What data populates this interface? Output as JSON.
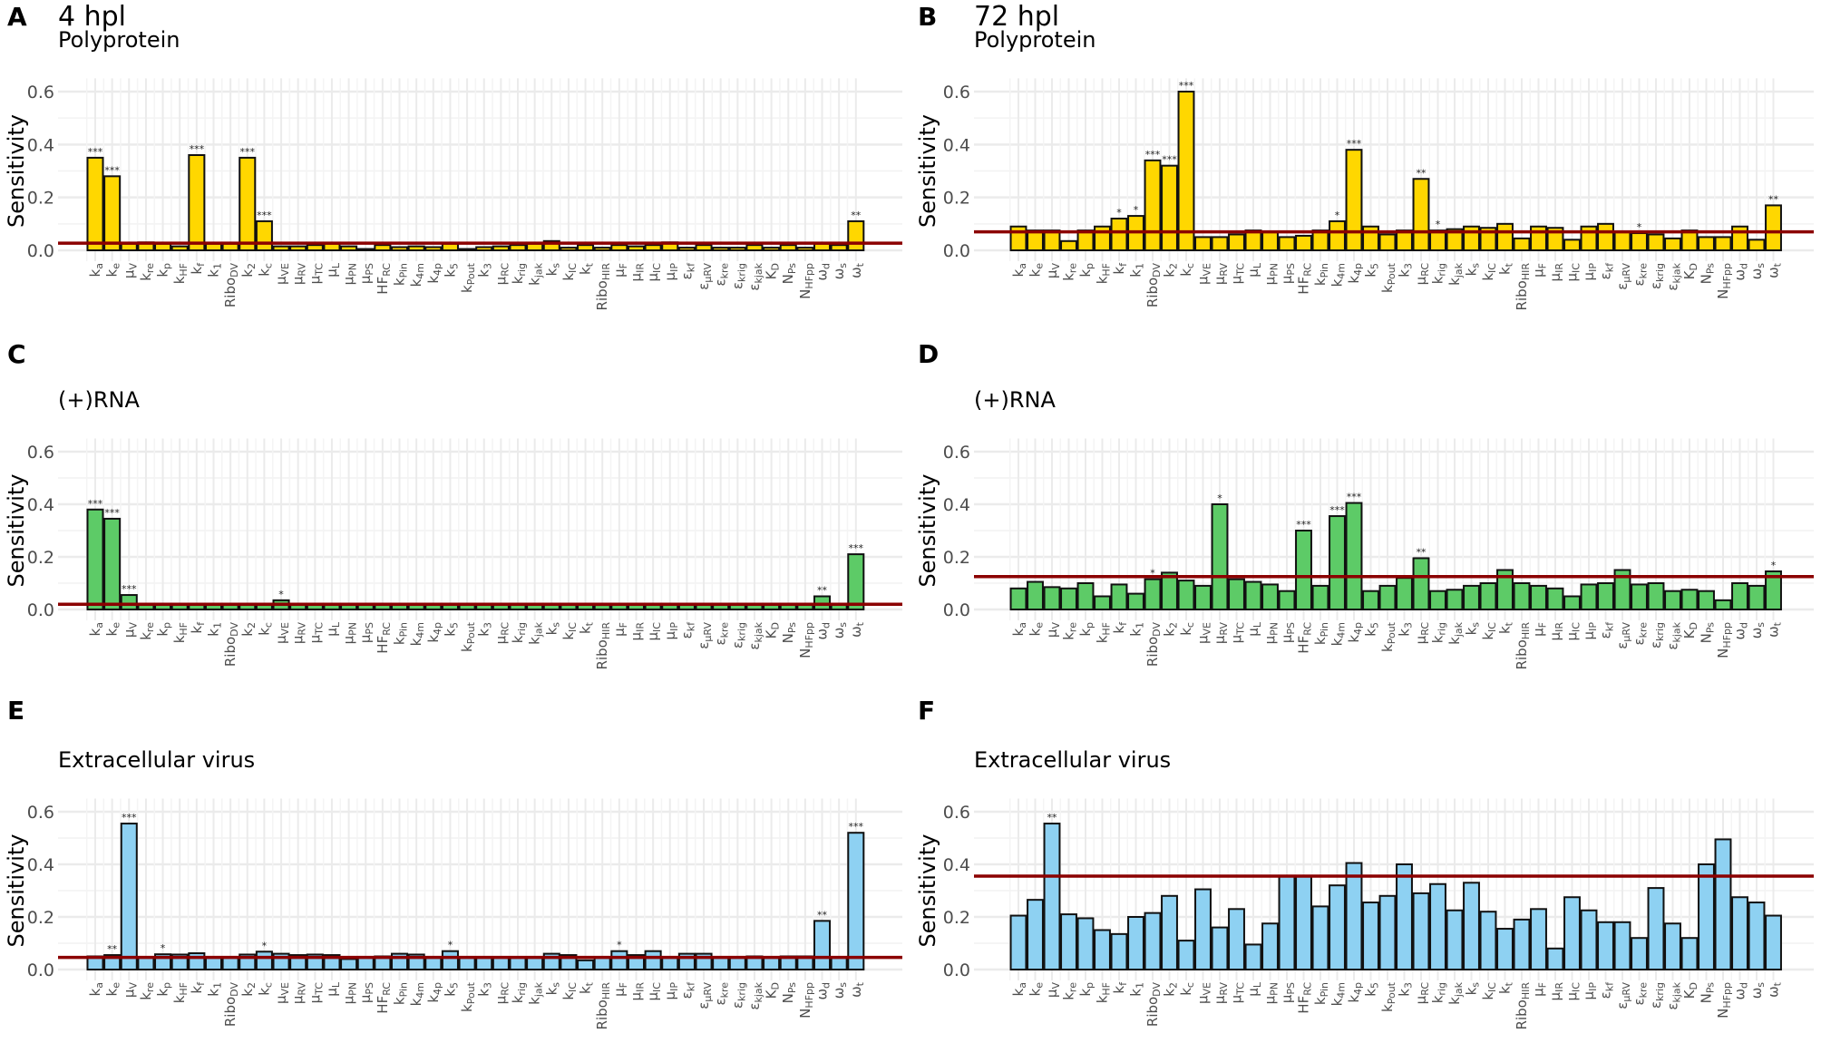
{
  "chart_data": {
    "type": "bar",
    "ylabel": "Sensitivity",
    "ylim": [
      0,
      0.65
    ],
    "yticks": [
      "0.0",
      "0.2",
      "0.4",
      "0.6"
    ],
    "grid": true,
    "categories": [
      {
        "base": "k",
        "sub": "a"
      },
      {
        "base": "k",
        "sub": "e"
      },
      {
        "base": "μ",
        "sub": "V"
      },
      {
        "base": "k",
        "sub": "re"
      },
      {
        "base": "k",
        "sub": "p"
      },
      {
        "base": "k",
        "sub": "HF"
      },
      {
        "base": "k",
        "sub": "f"
      },
      {
        "base": "k",
        "sub": "1"
      },
      {
        "base": "Ribo",
        "sub": "DV"
      },
      {
        "base": "k",
        "sub": "2"
      },
      {
        "base": "k",
        "sub": "c"
      },
      {
        "base": "μ",
        "sub": "VE"
      },
      {
        "base": "μ",
        "sub": "RV"
      },
      {
        "base": "μ",
        "sub": "TC"
      },
      {
        "base": "μ",
        "sub": "L"
      },
      {
        "base": "μ",
        "sub": "PN"
      },
      {
        "base": "μ",
        "sub": "PS"
      },
      {
        "base": "HF",
        "sub": "RC"
      },
      {
        "base": "k",
        "sub": "Pin"
      },
      {
        "base": "k",
        "sub": "4m"
      },
      {
        "base": "k",
        "sub": "4p"
      },
      {
        "base": "k",
        "sub": "5"
      },
      {
        "base": "k",
        "sub": "Pout"
      },
      {
        "base": "k",
        "sub": "3"
      },
      {
        "base": "μ",
        "sub": "RC"
      },
      {
        "base": "k",
        "sub": "rig"
      },
      {
        "base": "k",
        "sub": "jak"
      },
      {
        "base": "k",
        "sub": "s"
      },
      {
        "base": "k",
        "sub": "IC"
      },
      {
        "base": "k",
        "sub": "t"
      },
      {
        "base": "Ribo",
        "sub": "HIR"
      },
      {
        "base": "μ",
        "sub": "F"
      },
      {
        "base": "μ",
        "sub": "IR"
      },
      {
        "base": "μ",
        "sub": "IC"
      },
      {
        "base": "μ",
        "sub": "IP"
      },
      {
        "base": "ε",
        "sub": "kf"
      },
      {
        "base": "ε",
        "sub": "μRV"
      },
      {
        "base": "ε",
        "sub": "kre"
      },
      {
        "base": "ε",
        "sub": "krig"
      },
      {
        "base": "ε",
        "sub": "kjak"
      },
      {
        "base": "K",
        "sub": "D"
      },
      {
        "base": "N",
        "sub": "Ps"
      },
      {
        "base": "N",
        "sub": "HFpp"
      },
      {
        "base": "ω",
        "sub": "d"
      },
      {
        "base": "ω",
        "sub": "s"
      },
      {
        "base": "ω",
        "sub": "t"
      }
    ],
    "panels": [
      {
        "letter": "A",
        "timepoint": "4 hpl",
        "measure": "Polyprotein",
        "color": "#FFD700",
        "threshold": 0.027,
        "values": [
          0.35,
          0.28,
          0.025,
          0.03,
          0.025,
          0.015,
          0.36,
          0.025,
          0.025,
          0.35,
          0.11,
          0.015,
          0.015,
          0.02,
          0.025,
          0.015,
          0.005,
          0.02,
          0.012,
          0.015,
          0.012,
          0.025,
          0.005,
          0.012,
          0.015,
          0.02,
          0.025,
          0.035,
          0.01,
          0.02,
          0.01,
          0.02,
          0.015,
          0.02,
          0.03,
          0.01,
          0.02,
          0.01,
          0.01,
          0.02,
          0.01,
          0.02,
          0.01,
          0.025,
          0.02,
          0.11
        ],
        "significance": [
          "***",
          "***",
          "",
          "",
          "",
          "",
          "***",
          "",
          "",
          "***",
          "***",
          "",
          "",
          "",
          "",
          "",
          "",
          "",
          "",
          "",
          "",
          "",
          "",
          "",
          "",
          "",
          "",
          "",
          "",
          "",
          "",
          "",
          "",
          "",
          "",
          "",
          "",
          "",
          "",
          "",
          "",
          "",
          "",
          "",
          "",
          "**"
        ]
      },
      {
        "letter": "B",
        "timepoint": "72 hpl",
        "measure": "Polyprotein",
        "color": "#FFD700",
        "threshold": 0.07,
        "values": [
          0.09,
          0.075,
          0.075,
          0.035,
          0.075,
          0.09,
          0.12,
          0.13,
          0.34,
          0.32,
          0.6,
          0.05,
          0.05,
          0.06,
          0.075,
          0.07,
          0.05,
          0.055,
          0.075,
          0.11,
          0.38,
          0.09,
          0.06,
          0.075,
          0.27,
          0.075,
          0.08,
          0.09,
          0.085,
          0.1,
          0.045,
          0.09,
          0.085,
          0.04,
          0.09,
          0.1,
          0.07,
          0.065,
          0.06,
          0.045,
          0.075,
          0.05,
          0.05,
          0.09,
          0.04,
          0.17
        ],
        "significance": [
          "",
          "",
          "",
          "",
          "",
          "",
          "*",
          "*",
          "***",
          "***",
          "***",
          "",
          "",
          "",
          "",
          "",
          "",
          "",
          "",
          "*",
          "***",
          "",
          "",
          "",
          "**",
          "*",
          "",
          "",
          "",
          "",
          "",
          "",
          "",
          "",
          "",
          "",
          "",
          "*",
          "",
          "",
          "",
          "",
          "",
          "",
          "",
          "**"
        ]
      },
      {
        "letter": "C",
        "timepoint": "",
        "measure": "(+)RNA",
        "color": "#5DCB67",
        "threshold": 0.02,
        "values": [
          0.38,
          0.345,
          0.055,
          0.02,
          0.02,
          0.02,
          0.02,
          0.02,
          0.02,
          0.02,
          0.02,
          0.035,
          0.02,
          0.02,
          0.02,
          0.02,
          0.02,
          0.02,
          0.02,
          0.02,
          0.02,
          0.02,
          0.018,
          0.022,
          0.02,
          0.02,
          0.02,
          0.022,
          0.02,
          0.02,
          0.017,
          0.02,
          0.02,
          0.02,
          0.02,
          0.02,
          0.02,
          0.022,
          0.02,
          0.02,
          0.02,
          0.02,
          0.02,
          0.05,
          0.02,
          0.21
        ],
        "significance": [
          "***",
          "***",
          "***",
          "",
          "",
          "",
          "",
          "",
          "",
          "",
          "",
          "*",
          "",
          "",
          "",
          "",
          "",
          "",
          "",
          "",
          "",
          "",
          "",
          "",
          "",
          "",
          "",
          "",
          "",
          "",
          "",
          "",
          "",
          "",
          "",
          "",
          "",
          "",
          "",
          "",
          "",
          "",
          "",
          "**",
          "",
          "***"
        ]
      },
      {
        "letter": "D",
        "timepoint": "",
        "measure": "(+)RNA",
        "color": "#5DCB67",
        "threshold": 0.125,
        "values": [
          0.08,
          0.105,
          0.085,
          0.08,
          0.1,
          0.05,
          0.095,
          0.06,
          0.115,
          0.14,
          0.11,
          0.09,
          0.4,
          0.115,
          0.105,
          0.095,
          0.07,
          0.3,
          0.09,
          0.355,
          0.405,
          0.07,
          0.09,
          0.12,
          0.195,
          0.07,
          0.075,
          0.09,
          0.1,
          0.15,
          0.1,
          0.09,
          0.08,
          0.05,
          0.095,
          0.1,
          0.15,
          0.095,
          0.1,
          0.07,
          0.075,
          0.07,
          0.035,
          0.1,
          0.09,
          0.145
        ],
        "significance": [
          "",
          "",
          "",
          "",
          "",
          "",
          "",
          "",
          "*",
          "",
          "",
          "",
          "*",
          "",
          "",
          "",
          "",
          "***",
          "",
          "***",
          "***",
          "",
          "",
          "",
          "**",
          "",
          "",
          "",
          "",
          "",
          "",
          "",
          "",
          "",
          "",
          "",
          "",
          "",
          "",
          "",
          "",
          "",
          "",
          "",
          "",
          "*"
        ]
      },
      {
        "letter": "E",
        "timepoint": "",
        "measure": "Extracellular virus",
        "color": "#8ED1F2",
        "threshold": 0.046,
        "values": [
          0.05,
          0.055,
          0.555,
          0.045,
          0.058,
          0.057,
          0.062,
          0.045,
          0.045,
          0.057,
          0.068,
          0.06,
          0.055,
          0.057,
          0.055,
          0.04,
          0.045,
          0.05,
          0.06,
          0.057,
          0.045,
          0.07,
          0.045,
          0.045,
          0.045,
          0.045,
          0.045,
          0.06,
          0.055,
          0.035,
          0.045,
          0.07,
          0.055,
          0.07,
          0.045,
          0.06,
          0.06,
          0.045,
          0.045,
          0.05,
          0.045,
          0.05,
          0.05,
          0.185,
          0.045,
          0.52
        ],
        "significance": [
          "",
          "**",
          "***",
          "",
          "*",
          "",
          "",
          "",
          "",
          "",
          "*",
          "",
          "",
          "",
          "",
          "",
          "",
          "",
          "",
          "",
          "",
          "*",
          "",
          "",
          "",
          "",
          "",
          "",
          "",
          "",
          "",
          "*",
          "",
          "",
          "",
          "",
          "",
          "",
          "",
          "",
          "",
          "",
          "",
          "**",
          "",
          "***"
        ]
      },
      {
        "letter": "F",
        "timepoint": "",
        "measure": "Extracellular virus",
        "color": "#8ED1F2",
        "threshold": 0.355,
        "values": [
          0.205,
          0.265,
          0.555,
          0.21,
          0.195,
          0.15,
          0.135,
          0.2,
          0.215,
          0.28,
          0.11,
          0.305,
          0.16,
          0.23,
          0.095,
          0.175,
          0.355,
          0.355,
          0.24,
          0.32,
          0.405,
          0.255,
          0.28,
          0.4,
          0.29,
          0.325,
          0.225,
          0.33,
          0.22,
          0.155,
          0.19,
          0.23,
          0.08,
          0.275,
          0.225,
          0.18,
          0.18,
          0.12,
          0.31,
          0.175,
          0.12,
          0.4,
          0.495,
          0.275,
          0.255,
          0.205
        ],
        "significance": [
          "",
          "",
          "**",
          "",
          "",
          "",
          "",
          "",
          "",
          "",
          "",
          "",
          "",
          "",
          "",
          "",
          "",
          "",
          "",
          "",
          "",
          "",
          "",
          "",
          "",
          "",
          "",
          "",
          "",
          "",
          "",
          "",
          "",
          "",
          "",
          "",
          "",
          "",
          "",
          "",
          "",
          "",
          "",
          "",
          "",
          ""
        ]
      }
    ]
  }
}
